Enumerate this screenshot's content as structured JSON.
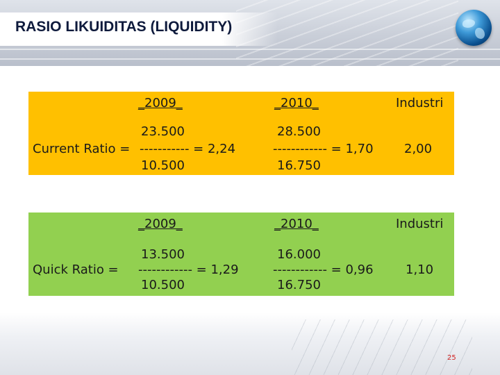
{
  "slide": {
    "title": "RASIO LIKUIDITAS (LIQUIDITY)",
    "page_number": "25"
  },
  "current_ratio": {
    "header_2009": "_2009_",
    "header_2010": "_2010_",
    "header_industri": "Industri",
    "label": "Current Ratio = ",
    "y2009": {
      "numerator": "23.500",
      "line": "----------- = 2,24",
      "denominator": "10.500"
    },
    "y2010": {
      "numerator": "28.500",
      "line": "------------ = 1,70",
      "denominator": "16.750"
    },
    "industri_value": "2,00"
  },
  "quick_ratio": {
    "header_2009": "_2009_",
    "header_2010": "_2010_",
    "header_industri": "Industri",
    "label": "Quick Ratio = ",
    "y2009": {
      "numerator": "13.500",
      "line": "------------ = 1,29",
      "denominator": "10.500"
    },
    "y2010": {
      "numerator": "16.000",
      "line": "------------ = 0,96",
      "denominator": "16.750"
    },
    "industri_value": "1,10"
  },
  "colors": {
    "current_panel": "#ffc000",
    "quick_panel": "#92d050",
    "title_text": "#0e1a3c",
    "page_number": "#d02020"
  }
}
